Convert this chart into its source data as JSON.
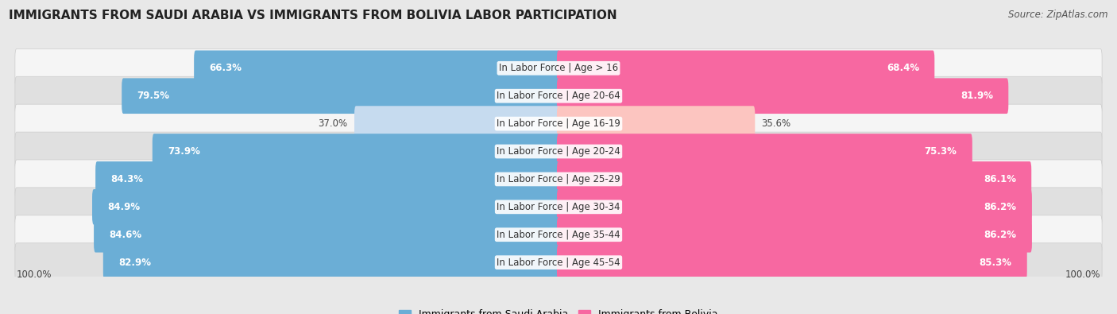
{
  "title": "IMMIGRANTS FROM SAUDI ARABIA VS IMMIGRANTS FROM BOLIVIA LABOR PARTICIPATION",
  "source": "Source: ZipAtlas.com",
  "categories": [
    "In Labor Force | Age > 16",
    "In Labor Force | Age 20-64",
    "In Labor Force | Age 16-19",
    "In Labor Force | Age 20-24",
    "In Labor Force | Age 25-29",
    "In Labor Force | Age 30-34",
    "In Labor Force | Age 35-44",
    "In Labor Force | Age 45-54"
  ],
  "saudi_values": [
    66.3,
    79.5,
    37.0,
    73.9,
    84.3,
    84.9,
    84.6,
    82.9
  ],
  "bolivia_values": [
    68.4,
    81.9,
    35.6,
    75.3,
    86.1,
    86.2,
    86.2,
    85.3
  ],
  "saudi_color": "#6baed6",
  "saudi_color_light": "#c6dbef",
  "bolivia_color": "#f768a1",
  "bolivia_color_light": "#fcc5c0",
  "bar_height": 0.68,
  "background_color": "#e8e8e8",
  "row_bg_light": "#f5f5f5",
  "row_bg_dark": "#e0e0e0",
  "legend_saudi": "Immigrants from Saudi Arabia",
  "legend_bolivia": "Immigrants from Bolivia",
  "label_fontsize": 8.5,
  "value_fontsize": 8.5,
  "title_fontsize": 11,
  "source_fontsize": 8.5
}
